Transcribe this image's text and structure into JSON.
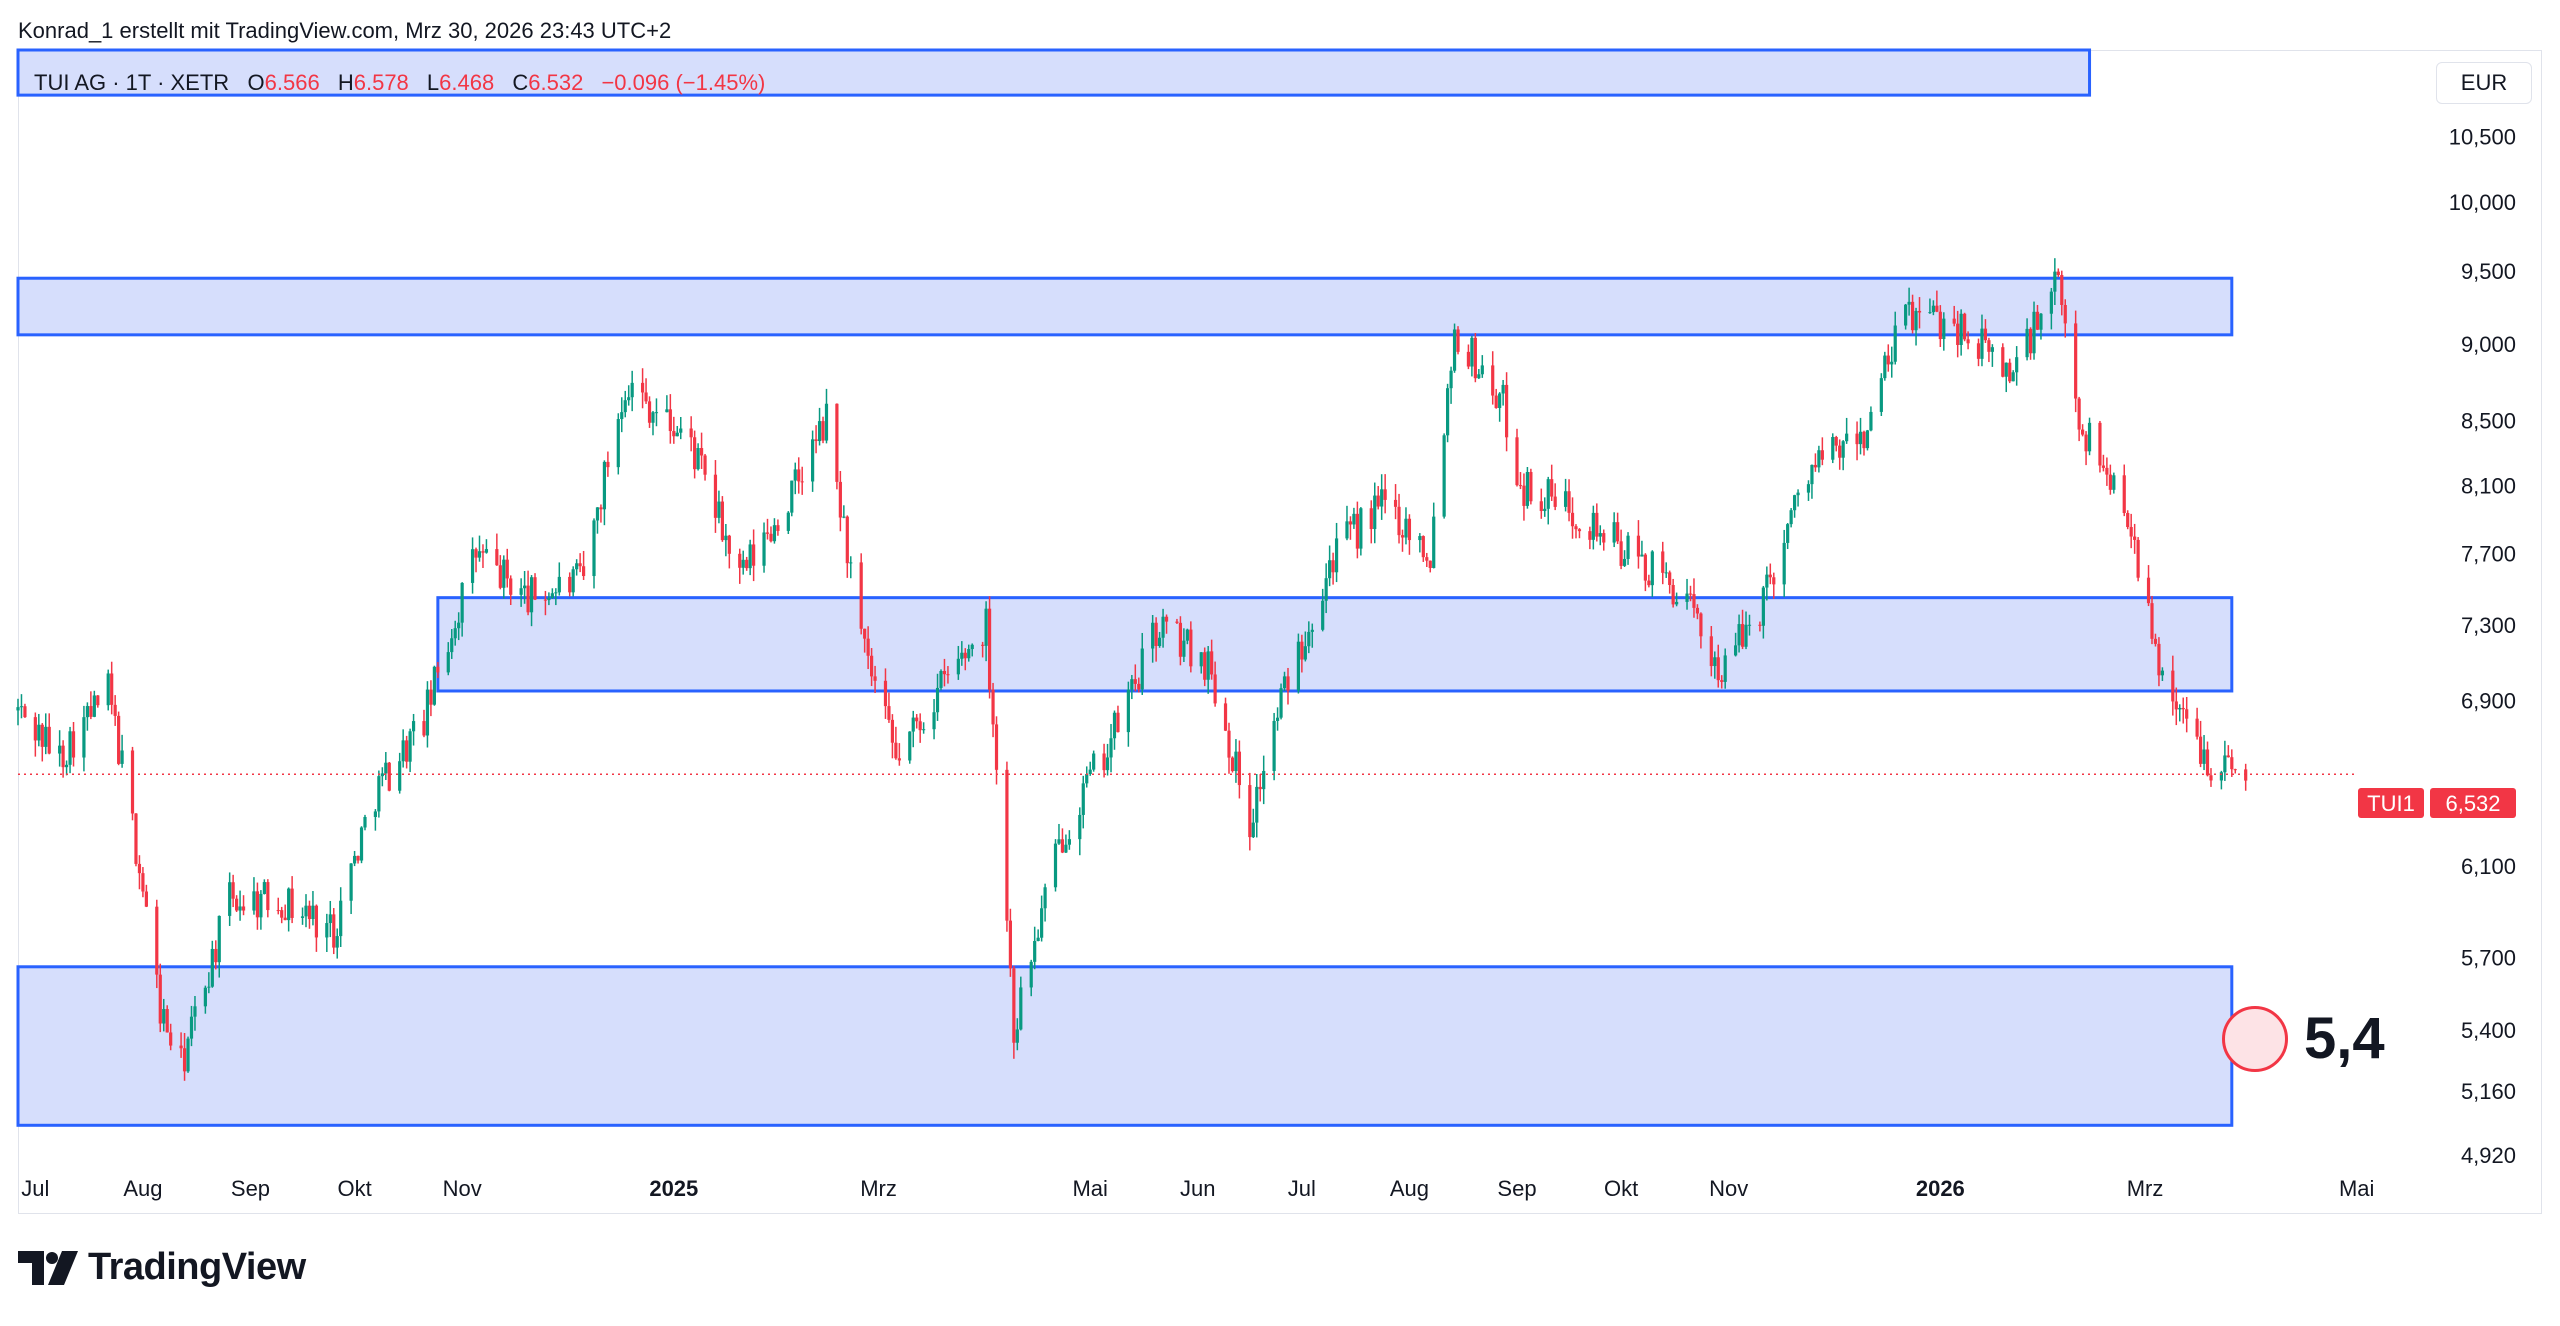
{
  "header": {
    "attribution": "Konrad_1 erstellt mit TradingView.com, Mrz 30, 2026 23:43 UTC+2"
  },
  "legend": {
    "symbol": "TUI AG · 1T · XETR",
    "o_label": "O",
    "o_value": "6.566",
    "h_label": "H",
    "h_value": "6.578",
    "l_label": "L",
    "l_value": "6.468",
    "c_label": "C",
    "c_value": "6.532",
    "change": "−0.096 (−1.45%)"
  },
  "currency_button": "EUR",
  "price_label": {
    "ticker": "TUI1",
    "value": "6,532"
  },
  "target_annotation": "5,4",
  "footer": {
    "brand": "TradingView"
  },
  "colors": {
    "up": "#089981",
    "down": "#f23645",
    "zone_fill": "#d6defc",
    "zone_border": "#2962ff"
  },
  "chart_data": {
    "type": "candlestick",
    "symbol": "TUI AG",
    "exchange": "XETR",
    "interval": "1T",
    "y_scale": "log",
    "y_range": [
      4.92,
      11.2
    ],
    "x_range": [
      "2024-06-26",
      "2026-05-25"
    ],
    "y_ticks": [
      {
        "value": 10.5,
        "label": "10,500"
      },
      {
        "value": 10.0,
        "label": "10,000"
      },
      {
        "value": 9.5,
        "label": "9,500"
      },
      {
        "value": 9.0,
        "label": "9,000"
      },
      {
        "value": 8.5,
        "label": "8,500"
      },
      {
        "value": 8.1,
        "label": "8,100"
      },
      {
        "value": 7.7,
        "label": "7,700"
      },
      {
        "value": 7.3,
        "label": "7,300"
      },
      {
        "value": 6.9,
        "label": "6,900"
      },
      {
        "value": 6.1,
        "label": "6,100"
      },
      {
        "value": 5.7,
        "label": "5,700"
      },
      {
        "value": 5.4,
        "label": "5,400"
      },
      {
        "value": 5.16,
        "label": "5,160"
      },
      {
        "value": 4.92,
        "label": "4,920"
      }
    ],
    "x_ticks": [
      {
        "date": "2024-07-01",
        "label": "Jul",
        "bold": false
      },
      {
        "date": "2024-08-01",
        "label": "Aug",
        "bold": false
      },
      {
        "date": "2024-09-01",
        "label": "Sep",
        "bold": false
      },
      {
        "date": "2024-10-01",
        "label": "Okt",
        "bold": false
      },
      {
        "date": "2024-11-01",
        "label": "Nov",
        "bold": false
      },
      {
        "date": "2025-01-01",
        "label": "2025",
        "bold": true
      },
      {
        "date": "2025-03-01",
        "label": "Mrz",
        "bold": false
      },
      {
        "date": "2025-05-01",
        "label": "Mai",
        "bold": false
      },
      {
        "date": "2025-06-01",
        "label": "Jun",
        "bold": false
      },
      {
        "date": "2025-07-01",
        "label": "Jul",
        "bold": false
      },
      {
        "date": "2025-08-01",
        "label": "Aug",
        "bold": false
      },
      {
        "date": "2025-09-01",
        "label": "Sep",
        "bold": false
      },
      {
        "date": "2025-10-01",
        "label": "Okt",
        "bold": false
      },
      {
        "date": "2025-11-01",
        "label": "Nov",
        "bold": false
      },
      {
        "date": "2026-01-01",
        "label": "2026",
        "bold": true
      },
      {
        "date": "2026-03-01",
        "label": "Mrz",
        "bold": false
      },
      {
        "date": "2026-05-01",
        "label": "Mai",
        "bold": false
      }
    ],
    "last_price": 6.532,
    "zones": [
      {
        "from": "2024-06-26",
        "to": "2026-02-13",
        "low": 10.83,
        "high": 11.2
      },
      {
        "from": "2024-06-26",
        "to": "2026-03-26",
        "low": 9.06,
        "high": 9.45
      },
      {
        "from": "2024-10-25",
        "to": "2026-03-26",
        "low": 6.95,
        "high": 7.45
      },
      {
        "from": "2024-06-26",
        "to": "2026-03-26",
        "low": 5.03,
        "high": 5.66
      }
    ],
    "price_path": [
      [
        "2024-06-26",
        6.85
      ],
      [
        "2024-07-08",
        6.62
      ],
      [
        "2024-07-22",
        6.95
      ],
      [
        "2024-08-01",
        6.0
      ],
      [
        "2024-08-06",
        5.48
      ],
      [
        "2024-08-12",
        5.25
      ],
      [
        "2024-08-26",
        5.95
      ],
      [
        "2024-09-10",
        5.95
      ],
      [
        "2024-09-25",
        5.82
      ],
      [
        "2024-10-07",
        6.45
      ],
      [
        "2024-10-21",
        6.8
      ],
      [
        "2024-11-05",
        7.7
      ],
      [
        "2024-11-20",
        7.45
      ],
      [
        "2024-12-06",
        7.55
      ],
      [
        "2024-12-18",
        8.75
      ],
      [
        "2025-01-06",
        8.35
      ],
      [
        "2025-01-20",
        7.55
      ],
      [
        "2025-02-03",
        8.0
      ],
      [
        "2025-02-14",
        8.5
      ],
      [
        "2025-02-24",
        7.2
      ],
      [
        "2025-03-06",
        6.6
      ],
      [
        "2025-03-20",
        7.0
      ],
      [
        "2025-04-01",
        7.3
      ],
      [
        "2025-04-09",
        5.4
      ],
      [
        "2025-04-23",
        6.25
      ],
      [
        "2025-05-07",
        6.7
      ],
      [
        "2025-05-21",
        7.3
      ],
      [
        "2025-06-04",
        7.1
      ],
      [
        "2025-06-16",
        6.3
      ],
      [
        "2025-06-25",
        6.9
      ],
      [
        "2025-07-10",
        7.7
      ],
      [
        "2025-07-25",
        8.0
      ],
      [
        "2025-08-07",
        7.7
      ],
      [
        "2025-08-14",
        9.1
      ],
      [
        "2025-08-28",
        8.6
      ],
      [
        "2025-09-02",
        8.1
      ],
      [
        "2025-09-18",
        7.95
      ],
      [
        "2025-10-03",
        7.7
      ],
      [
        "2025-10-17",
        7.5
      ],
      [
        "2025-10-30",
        7.05
      ],
      [
        "2025-11-10",
        7.4
      ],
      [
        "2025-11-24",
        8.2
      ],
      [
        "2025-12-10",
        8.4
      ],
      [
        "2025-12-22",
        9.2
      ],
      [
        "2026-01-05",
        9.15
      ],
      [
        "2026-01-21",
        8.8
      ],
      [
        "2026-02-04",
        9.4
      ],
      [
        "2026-02-10",
        8.5
      ],
      [
        "2026-02-25",
        7.9
      ],
      [
        "2026-03-03",
        7.2
      ],
      [
        "2026-03-12",
        6.8
      ],
      [
        "2026-03-20",
        6.6
      ],
      [
        "2026-03-30",
        6.532
      ]
    ]
  }
}
